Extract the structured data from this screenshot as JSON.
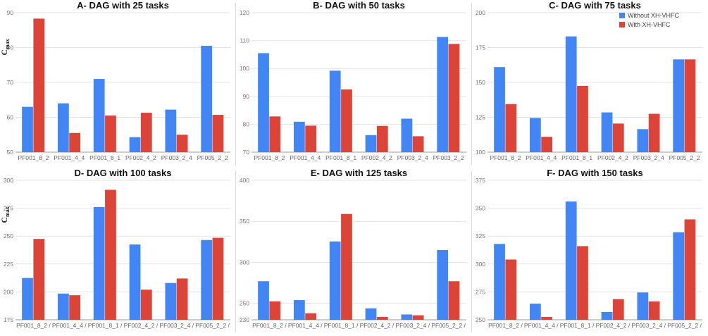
{
  "colors": {
    "without": "#4285f4",
    "with": "#db4437"
  },
  "legend": {
    "items": [
      "Without XH-VHFC",
      "With XH-VHFC"
    ],
    "placement": "top-right of panel C"
  },
  "chart_data": [
    {
      "type": "bar",
      "title": "A- DAG with 25 tasks",
      "ylabel": "C",
      "ylabel_sub": "max",
      "ylim": [
        50,
        90
      ],
      "yticks": [
        50,
        60,
        70,
        80,
        90
      ],
      "categories": [
        "PF001_8_2",
        "PF001_4_4",
        "PF001_8_1",
        "PF002_4_2",
        "PF003_2_4",
        "PF005_2_2"
      ],
      "series": [
        {
          "name": "Without XH-VHFC",
          "values": [
            63,
            64,
            71,
            54.3,
            62.2,
            80.5
          ]
        },
        {
          "name": "With XH-VHFC",
          "values": [
            88.3,
            55.5,
            60.5,
            61.3,
            55,
            60.7
          ]
        }
      ]
    },
    {
      "type": "bar",
      "title": "B- DAG with 50 tasks",
      "ylabel": "",
      "ylabel_sub": "",
      "ylim": [
        70,
        120
      ],
      "yticks": [
        70,
        80,
        90,
        100,
        110,
        120
      ],
      "categories": [
        "PF001_8_2",
        "PF001_4_4",
        "PF001_8_1",
        "PF002_4_2",
        "PF003_2_4",
        "PF003_2_2"
      ],
      "series": [
        {
          "name": "Without XH-VHFC",
          "values": [
            105.5,
            80.9,
            99.2,
            76.1,
            82,
            111.3
          ]
        },
        {
          "name": "With XH-VHFC",
          "values": [
            82.8,
            79.5,
            92.5,
            79.4,
            75.7,
            108.8
          ]
        }
      ]
    },
    {
      "type": "bar",
      "title": "C- DAG with 75 tasks",
      "ylabel": "",
      "ylabel_sub": "",
      "ylim": [
        100,
        200
      ],
      "yticks": [
        100,
        125,
        150,
        175,
        200
      ],
      "categories": [
        "PF001_8_2",
        "PF001_4_4",
        "PF001_8_1",
        "PF002_4_2",
        "PF003_2_4",
        "PF005_2_2"
      ],
      "series": [
        {
          "name": "Without XH-VHFC",
          "values": [
            161,
            124.5,
            183,
            128.5,
            116.5,
            166.5
          ]
        },
        {
          "name": "With XH-VHFC",
          "values": [
            134.5,
            111,
            147.5,
            120.5,
            127.5,
            166.5
          ]
        }
      ]
    },
    {
      "type": "bar",
      "title": "D- DAG with 100 tasks",
      "ylabel": "C",
      "ylabel_sub": "max",
      "ylim": [
        175,
        300
      ],
      "yticks": [
        175,
        200,
        225,
        250,
        275,
        300
      ],
      "categories": [
        "PF001_8_2 /",
        "PF001_4_4 /",
        "PF001_8_1 /",
        "PF002_4_2 /",
        "PF003_2_4 /",
        "PF005_2_2 /"
      ],
      "series": [
        {
          "name": "Without XH-VHFC",
          "values": [
            212.5,
            198.5,
            276,
            242.5,
            208,
            246.5
          ]
        },
        {
          "name": "With XH-VHFC",
          "values": [
            247.5,
            197,
            291.5,
            202,
            212,
            248.5
          ]
        }
      ]
    },
    {
      "type": "bar",
      "title": "E- DAG with 125 tasks",
      "ylabel": "",
      "ylabel_sub": "",
      "ylim": [
        230,
        400
      ],
      "yticks": [
        230,
        250,
        300,
        350,
        400
      ],
      "categories": [
        "PF001_8_2 /",
        "PF001_4_4 /",
        "PF001_8_1 /",
        "PF002_4_2 /",
        "PF003_2_4 /",
        "PF005_2_2 /"
      ],
      "series": [
        {
          "name": "Without XH-VHFC",
          "values": [
            277,
            254,
            325.5,
            244,
            236.5,
            315
          ]
        },
        {
          "name": "With XH-VHFC",
          "values": [
            252.5,
            238,
            359,
            233.5,
            235.5,
            277
          ]
        }
      ]
    },
    {
      "type": "bar",
      "title": "F- DAG with 150 tasks",
      "ylabel": "",
      "ylabel_sub": "",
      "ylim": [
        250,
        375
      ],
      "yticks": [
        250,
        275,
        300,
        325,
        350,
        375
      ],
      "categories": [
        "PF001_8_2 /",
        "PF001_4_4 /",
        "PF001_8_1 /",
        "PF002_4_2 /",
        "PF003_2_4 /",
        "PF005_2_2 /"
      ],
      "series": [
        {
          "name": "Without XH-VHFC",
          "values": [
            318,
            264.5,
            356,
            257,
            274.5,
            328.5
          ]
        },
        {
          "name": "With XH-VHFC",
          "values": [
            304,
            252.5,
            316,
            268.5,
            266.5,
            340
          ]
        }
      ]
    }
  ]
}
